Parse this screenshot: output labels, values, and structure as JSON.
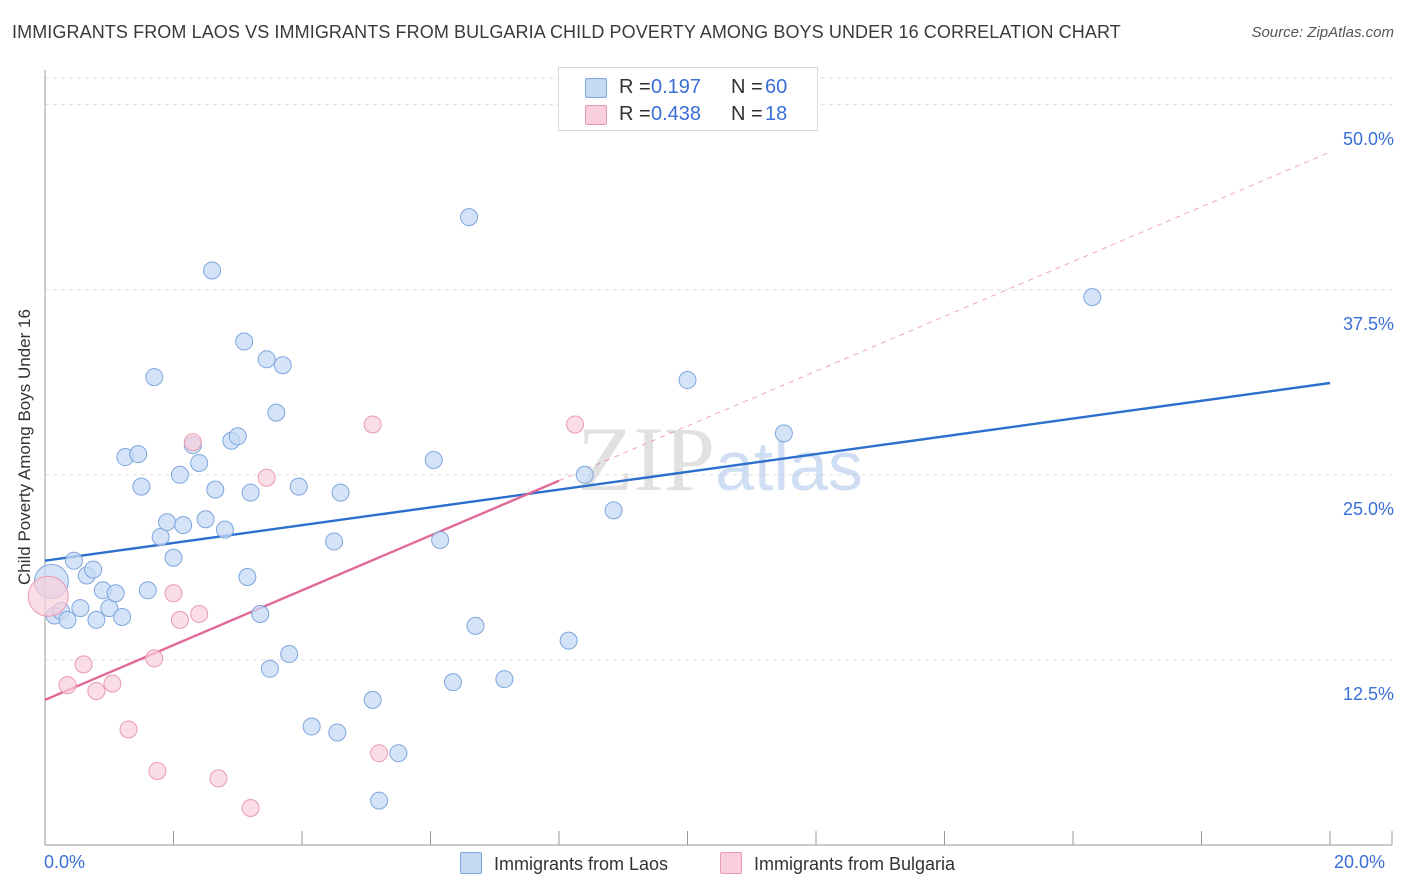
{
  "title": "IMMIGRANTS FROM LAOS VS IMMIGRANTS FROM BULGARIA CHILD POVERTY AMONG BOYS UNDER 16 CORRELATION CHART",
  "source": "Source: ZipAtlas.com",
  "watermark": "ZIPatlas",
  "colors": {
    "laos_fill": "#c5d9f5",
    "laos_stroke": "#7fa6dc",
    "laos_line": "#2d6fcd",
    "bulgaria_fill": "#f9cfdc",
    "bulgaria_stroke": "#e89ab3",
    "bulgaria_line": "#e0699a",
    "tick_label": "#3a6fd8",
    "grid": "#dedede"
  },
  "legend": {
    "rows": [
      {
        "r_label": "R =",
        "r_value": "0.197",
        "n_label": "N =",
        "n_value": "60"
      },
      {
        "r_label": "R =",
        "r_value": "0.438",
        "n_label": "N =",
        "n_value": "18"
      }
    ]
  },
  "chart_data": {
    "type": "scatter",
    "title": "IMMIGRANTS FROM LAOS VS IMMIGRANTS FROM BULGARIA CHILD POVERTY AMONG BOYS UNDER 16 CORRELATION CHART",
    "xlabel": "",
    "ylabel": "Child Poverty Among Boys Under 16",
    "xlim": [
      0,
      20
    ],
    "ylim": [
      0,
      52
    ],
    "x_tick_labels": [
      "0.0%",
      "20.0%"
    ],
    "y_ticks": [
      12.5,
      25.0,
      37.5,
      50.0
    ],
    "y_tick_labels": [
      "12.5%",
      "25.0%",
      "37.5%",
      "50.0%"
    ],
    "series": [
      {
        "name": "Immigrants from Laos",
        "points": [
          [
            0.1,
            17.8
          ],
          [
            0.15,
            15.5
          ],
          [
            0.25,
            15.8
          ],
          [
            0.35,
            15.2
          ],
          [
            0.45,
            19.2
          ],
          [
            0.55,
            16.0
          ],
          [
            0.65,
            18.2
          ],
          [
            0.75,
            18.6
          ],
          [
            0.8,
            15.2
          ],
          [
            0.9,
            17.2
          ],
          [
            1.0,
            16.0
          ],
          [
            1.1,
            17.0
          ],
          [
            1.2,
            15.4
          ],
          [
            1.25,
            26.2
          ],
          [
            1.45,
            26.4
          ],
          [
            1.5,
            24.2
          ],
          [
            1.6,
            17.2
          ],
          [
            1.7,
            31.6
          ],
          [
            1.8,
            20.8
          ],
          [
            1.9,
            21.8
          ],
          [
            2.0,
            19.4
          ],
          [
            2.1,
            25.0
          ],
          [
            2.15,
            21.6
          ],
          [
            2.3,
            27.0
          ],
          [
            2.4,
            25.8
          ],
          [
            2.5,
            22.0
          ],
          [
            2.6,
            38.8
          ],
          [
            2.65,
            24.0
          ],
          [
            2.8,
            21.3
          ],
          [
            2.9,
            27.3
          ],
          [
            3.0,
            27.6
          ],
          [
            3.1,
            34.0
          ],
          [
            3.15,
            18.1
          ],
          [
            3.2,
            23.8
          ],
          [
            3.35,
            15.6
          ],
          [
            3.45,
            32.8
          ],
          [
            3.5,
            11.9
          ],
          [
            3.6,
            29.2
          ],
          [
            3.7,
            32.4
          ],
          [
            3.8,
            12.9
          ],
          [
            3.95,
            24.2
          ],
          [
            4.15,
            8.0
          ],
          [
            4.5,
            20.5
          ],
          [
            4.6,
            23.8
          ],
          [
            4.55,
            7.6
          ],
          [
            5.1,
            9.8
          ],
          [
            5.2,
            3.0
          ],
          [
            5.5,
            6.2
          ],
          [
            6.05,
            26.0
          ],
          [
            6.15,
            20.6
          ],
          [
            6.35,
            11.0
          ],
          [
            6.6,
            42.4
          ],
          [
            6.7,
            14.8
          ],
          [
            7.15,
            11.2
          ],
          [
            8.15,
            13.8
          ],
          [
            8.4,
            25.0
          ],
          [
            8.85,
            22.6
          ],
          [
            10.0,
            31.4
          ],
          [
            11.5,
            27.8
          ],
          [
            16.3,
            37.0
          ]
        ]
      },
      {
        "name": "Immigrants from Bulgaria",
        "points": [
          [
            0.05,
            16.8
          ],
          [
            0.35,
            10.8
          ],
          [
            0.6,
            12.2
          ],
          [
            0.8,
            10.4
          ],
          [
            1.05,
            10.9
          ],
          [
            1.3,
            7.8
          ],
          [
            1.7,
            12.6
          ],
          [
            1.75,
            5.0
          ],
          [
            2.0,
            17.0
          ],
          [
            2.1,
            15.2
          ],
          [
            2.3,
            27.2
          ],
          [
            2.4,
            15.6
          ],
          [
            2.7,
            4.5
          ],
          [
            3.2,
            2.5
          ],
          [
            3.45,
            24.8
          ],
          [
            5.1,
            28.4
          ],
          [
            5.2,
            6.2
          ],
          [
            8.25,
            28.4
          ]
        ]
      }
    ],
    "trendlines": [
      {
        "name": "Immigrants from Laos",
        "x": [
          0,
          20
        ],
        "y": [
          19.2,
          31.2
        ],
        "style": "solid"
      },
      {
        "name": "Immigrants from Bulgaria",
        "x": [
          0,
          8.0
        ],
        "y": [
          9.8,
          24.6
        ],
        "style": "solid"
      },
      {
        "name": "Immigrants from Bulgaria extension",
        "x": [
          8.0,
          20
        ],
        "y": [
          24.6,
          46.8
        ],
        "style": "dashed"
      }
    ]
  }
}
